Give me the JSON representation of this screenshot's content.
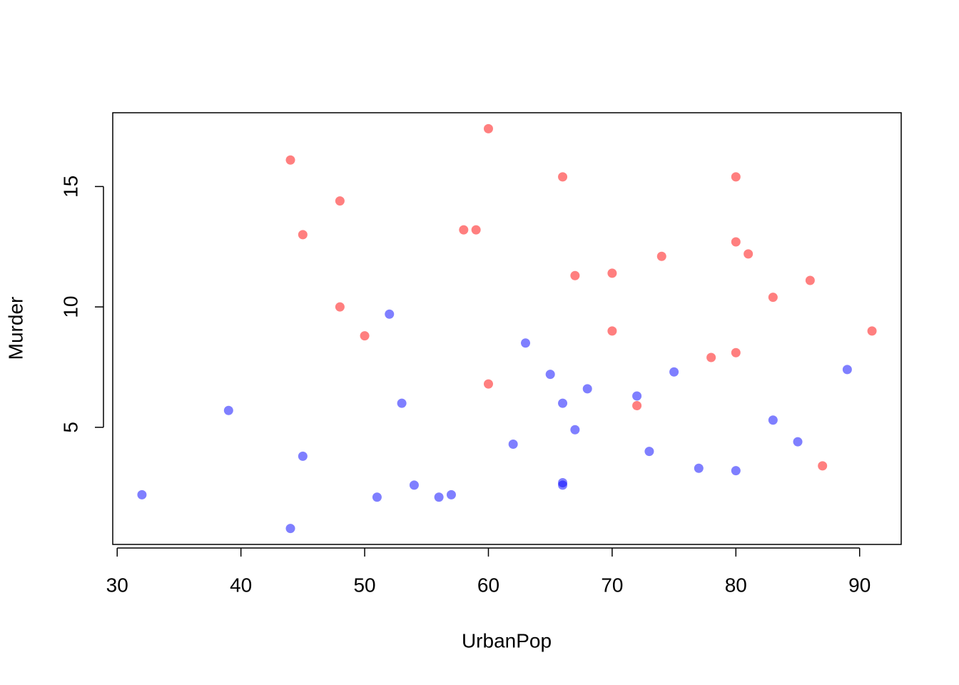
{
  "chart_data": {
    "type": "scatter",
    "x_label": "UrbanPop",
    "y_label": "Murder",
    "xlim": [
      29.64,
      93.36
    ],
    "ylim": [
      0.136,
      18.064
    ],
    "xticks": [
      30,
      40,
      50,
      60,
      70,
      80,
      90
    ],
    "yticks": [
      5,
      10,
      15
    ],
    "series": [
      {
        "color": "rgba(255,0,0,0.5)",
        "x": [
          44,
          48,
          45,
          60,
          66,
          80,
          58,
          59,
          74,
          80,
          81,
          67,
          70,
          86,
          83,
          48,
          50,
          70,
          91,
          78,
          80,
          60,
          72,
          87
        ],
        "values": [
          16.1,
          14.4,
          13.0,
          17.4,
          15.4,
          15.4,
          13.2,
          13.2,
          12.1,
          12.7,
          12.2,
          11.3,
          11.4,
          11.1,
          10.4,
          10.0,
          8.8,
          9.0,
          9.0,
          7.9,
          8.1,
          6.8,
          5.9,
          3.4
        ]
      },
      {
        "color": "rgba(0,0,255,0.5)",
        "x": [
          32,
          39,
          44,
          45,
          51,
          52,
          53,
          54,
          56,
          57,
          62,
          63,
          65,
          66,
          66,
          66,
          67,
          68,
          72,
          73,
          75,
          77,
          80,
          83,
          85,
          89
        ],
        "values": [
          2.2,
          5.7,
          0.8,
          3.8,
          2.1,
          9.7,
          6.0,
          2.6,
          2.1,
          2.2,
          4.3,
          8.5,
          7.2,
          6.0,
          2.7,
          2.6,
          4.9,
          6.6,
          6.3,
          4.0,
          7.3,
          3.3,
          3.2,
          5.3,
          4.4,
          7.4
        ]
      }
    ]
  }
}
